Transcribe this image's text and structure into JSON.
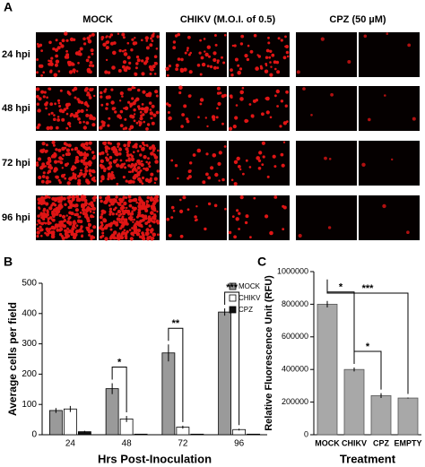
{
  "panel_a": {
    "label": "A",
    "columns": [
      "MOCK",
      "CHIKV (M.O.I. of 0.5)",
      "CPZ (50 µM)"
    ],
    "rows": [
      "24 hpi",
      "48 hpi",
      "72 hpi",
      "96 hpi"
    ]
  },
  "chart_data": [
    {
      "type": "bar",
      "panel": "B",
      "xlabel": "Hrs Post-Inoculation",
      "ylabel": "Average cells per field",
      "categories": [
        "24",
        "48",
        "72",
        "96"
      ],
      "series": [
        {
          "name": "MOCK",
          "color": "#9a9a9a",
          "values": [
            80,
            152,
            270,
            405
          ],
          "errors": [
            8,
            18,
            28,
            12
          ]
        },
        {
          "name": "CHIKV",
          "color": "#ffffff",
          "values": [
            85,
            52,
            25,
            17
          ],
          "errors": [
            10,
            10,
            5,
            3
          ]
        },
        {
          "name": "CPZ",
          "color": "#111111",
          "values": [
            10,
            2,
            2,
            2
          ],
          "errors": [
            3,
            1,
            1,
            1
          ]
        }
      ],
      "ylim": [
        0,
        500
      ],
      "yticks": [
        0,
        100,
        200,
        300,
        400,
        500
      ],
      "legend": "upper right",
      "annotations": [
        "*",
        "**",
        "***"
      ]
    },
    {
      "type": "bar",
      "panel": "C",
      "xlabel": "Treatment",
      "ylabel": "Relative Fluorescence Unit (RFU)",
      "categories": [
        "MOCK",
        "CHIKV",
        "CPZ",
        "EMPTY"
      ],
      "color": "#a8a8a8",
      "values": [
        800000,
        400000,
        240000,
        225000
      ],
      "errors": [
        20000,
        12000,
        15000,
        3000
      ],
      "ylim": [
        0,
        1000000
      ],
      "yticks": [
        0,
        200000,
        400000,
        600000,
        800000,
        1000000
      ],
      "annotations": [
        "***",
        "*",
        "*"
      ]
    }
  ]
}
